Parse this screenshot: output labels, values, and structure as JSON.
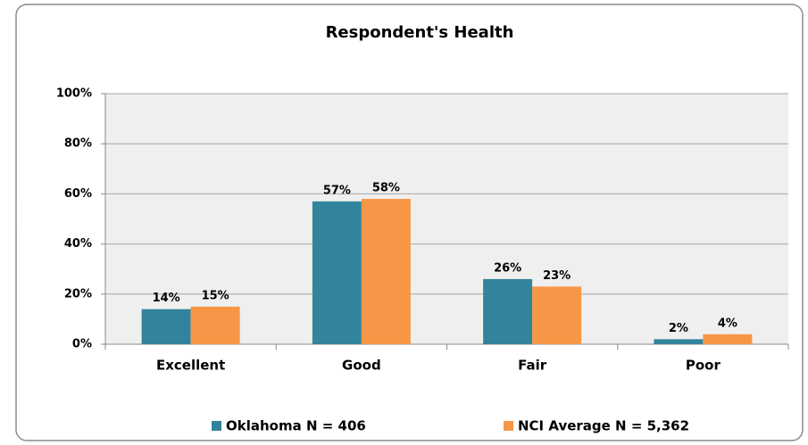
{
  "chart_data": {
    "type": "bar",
    "title": "Respondent's Health",
    "categories": [
      "Excellent",
      "Good",
      "Fair",
      "Poor"
    ],
    "series": [
      {
        "name": "Oklahoma N = 406",
        "color": "#31849b",
        "values": [
          14,
          57,
          26,
          2
        ],
        "value_labels": [
          "14%",
          "57%",
          "26%",
          "2%"
        ]
      },
      {
        "name": "NCI Average N = 5,362",
        "color": "#f79646",
        "values": [
          15,
          58,
          23,
          4
        ],
        "value_labels": [
          "15%",
          "58%",
          "23%",
          "4%"
        ]
      }
    ],
    "ylim": [
      0,
      100
    ],
    "yticks": [
      {
        "value": 0,
        "label": "0%"
      },
      {
        "value": 20,
        "label": "20%"
      },
      {
        "value": 40,
        "label": "40%"
      },
      {
        "value": 60,
        "label": "60%"
      },
      {
        "value": 80,
        "label": "80%"
      },
      {
        "value": 100,
        "label": "100%"
      }
    ],
    "grid": true,
    "legend": "bottom"
  }
}
